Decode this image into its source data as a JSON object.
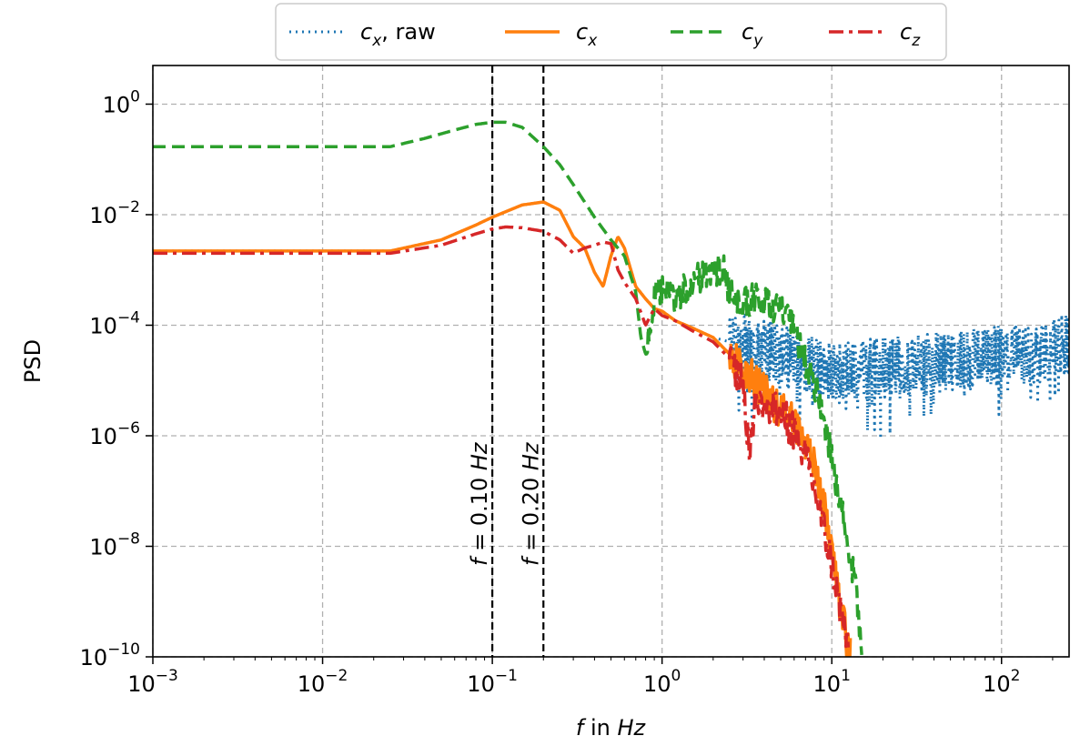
{
  "chart_data": {
    "type": "line",
    "xlabel": {
      "var": "f",
      "mid": " in ",
      "unit": "Hz"
    },
    "ylabel": "PSD",
    "xscale": "log",
    "yscale": "log",
    "xlim": [
      0.001,
      250
    ],
    "ylim": [
      1e-10,
      5
    ],
    "grid": true,
    "legend_placement": "top-center",
    "x_ticks": [
      {
        "value": 0.001,
        "base": "10",
        "exp": "−3"
      },
      {
        "value": 0.01,
        "base": "10",
        "exp": "−2"
      },
      {
        "value": 0.1,
        "base": "10",
        "exp": "−1"
      },
      {
        "value": 1,
        "base": "10",
        "exp": "0"
      },
      {
        "value": 10,
        "base": "10",
        "exp": "1"
      },
      {
        "value": 100,
        "base": "10",
        "exp": "2"
      }
    ],
    "y_ticks": [
      {
        "value": 1,
        "base": "10",
        "exp": "0"
      },
      {
        "value": 0.01,
        "base": "10",
        "exp": "−2"
      },
      {
        "value": 0.0001,
        "base": "10",
        "exp": "−4"
      },
      {
        "value": 1e-06,
        "base": "10",
        "exp": "−6"
      },
      {
        "value": 1e-08,
        "base": "10",
        "exp": "−8"
      },
      {
        "value": 1e-10,
        "base": "10",
        "exp": "−10"
      }
    ],
    "vlines": [
      {
        "x": 0.1,
        "label_var": "f",
        "label_rest": " = 0.10 ",
        "label_unit": "Hz"
      },
      {
        "x": 0.2,
        "label_var": "f",
        "label_rest": " = 0.20 ",
        "label_unit": "Hz"
      }
    ],
    "series": [
      {
        "key": "cx_raw",
        "legend_var": "c",
        "legend_sub": "x",
        "legend_suffix": ", raw",
        "color": "#1f77b4",
        "dash": "2,5",
        "width": 3,
        "x": [
          0.001,
          0.025,
          0.05,
          0.08,
          0.1,
          0.15,
          0.2,
          0.25,
          0.3,
          0.35,
          0.4,
          0.45,
          0.5,
          0.55,
          0.6,
          0.7,
          0.8,
          0.9,
          1.0,
          1.2,
          1.5,
          2.0,
          2.5,
          3.0,
          3.5,
          4.0,
          5.0,
          6.0,
          7.0,
          8.0,
          9.0,
          10,
          15,
          20,
          30,
          50,
          70,
          100,
          150,
          200,
          250
        ],
        "y": [
          0.0022,
          0.0022,
          0.0035,
          0.0065,
          0.009,
          0.015,
          0.017,
          0.012,
          0.004,
          0.0025,
          0.0009,
          0.0005,
          0.0018,
          0.004,
          0.0025,
          0.0005,
          0.0003,
          0.0002,
          0.00018,
          0.00012,
          9e-05,
          6e-05,
          5e-05,
          4.5e-05,
          4e-05,
          3.5e-05,
          3e-05,
          2.5e-05,
          2e-05,
          1.8e-05,
          1.5e-05,
          1.5e-05,
          1.6e-05,
          1.8e-05,
          2e-05,
          2.2e-05,
          2.5e-05,
          2.8e-05,
          3e-05,
          3.8e-05,
          5e-05
        ],
        "noise": {
          "x_from": 2.5,
          "amp": 0.55,
          "spikes": true
        }
      },
      {
        "key": "cx",
        "legend_var": "c",
        "legend_sub": "x",
        "legend_suffix": "",
        "color": "#ff7f0e",
        "dash": "",
        "width": 3.5,
        "x": [
          0.001,
          0.025,
          0.05,
          0.08,
          0.1,
          0.15,
          0.2,
          0.25,
          0.3,
          0.35,
          0.4,
          0.45,
          0.5,
          0.55,
          0.6,
          0.7,
          0.8,
          0.9,
          1.0,
          1.2,
          1.5,
          2.0,
          2.5,
          3.0,
          3.5,
          4.0,
          5.0,
          6.0,
          7.0,
          8.0,
          9.0,
          10,
          11,
          12,
          13
        ],
        "y": [
          0.0022,
          0.0022,
          0.0035,
          0.0065,
          0.009,
          0.015,
          0.017,
          0.012,
          0.004,
          0.0025,
          0.0009,
          0.0005,
          0.0018,
          0.004,
          0.0025,
          0.0005,
          0.0003,
          0.0002,
          0.00018,
          0.00012,
          9e-05,
          6e-05,
          3e-05,
          1.5e-05,
          1e-05,
          6e-06,
          3e-06,
          2e-06,
          8e-07,
          3e-07,
          5e-08,
          1e-08,
          1e-09,
          3e-10,
          1e-10
        ],
        "noise": {
          "x_from": 2.5,
          "amp": 0.35,
          "spikes": false
        }
      },
      {
        "key": "cy",
        "legend_var": "c",
        "legend_sub": "y",
        "legend_suffix": "",
        "color": "#2ca02c",
        "dash": "14,7",
        "width": 3.5,
        "x": [
          0.001,
          0.025,
          0.04,
          0.06,
          0.08,
          0.1,
          0.12,
          0.15,
          0.2,
          0.25,
          0.3,
          0.4,
          0.5,
          0.6,
          0.7,
          0.75,
          0.8,
          0.9,
          1.0,
          1.2,
          1.5,
          1.8,
          2.0,
          2.3,
          2.7,
          3.0,
          3.5,
          4.0,
          5.0,
          6.0,
          7.0,
          8.0,
          9.0,
          10,
          11,
          12,
          13,
          14,
          15
        ],
        "y": [
          0.17,
          0.17,
          0.24,
          0.34,
          0.43,
          0.47,
          0.47,
          0.38,
          0.17,
          0.08,
          0.035,
          0.009,
          0.0035,
          0.0018,
          0.0004,
          6e-05,
          3e-05,
          0.0003,
          0.0004,
          0.0003,
          0.0006,
          0.0008,
          0.001,
          0.001,
          0.0002,
          0.00025,
          0.0003,
          0.00025,
          0.0002,
          8e-05,
          2e-05,
          8e-06,
          2e-06,
          4e-07,
          8e-08,
          2e-08,
          5e-09,
          1.5e-09,
          1e-10
        ],
        "noise": {
          "x_from": 0.8,
          "amp": 0.3,
          "spikes": false
        }
      },
      {
        "key": "cz",
        "legend_var": "c",
        "legend_sub": "z",
        "legend_suffix": "",
        "color": "#d62728",
        "dash": "16,6,4,6",
        "width": 3.5,
        "x": [
          0.001,
          0.025,
          0.05,
          0.08,
          0.1,
          0.12,
          0.15,
          0.2,
          0.25,
          0.3,
          0.35,
          0.4,
          0.45,
          0.5,
          0.55,
          0.6,
          0.7,
          0.8,
          0.9,
          1.0,
          1.2,
          1.5,
          2.0,
          2.5,
          3.0,
          3.3,
          3.5,
          4.0,
          5.0,
          6.0,
          7.0,
          8.0,
          9.0,
          10,
          11,
          12,
          12.5
        ],
        "y": [
          0.002,
          0.002,
          0.0028,
          0.0045,
          0.0055,
          0.006,
          0.0058,
          0.005,
          0.0035,
          0.002,
          0.0025,
          0.0028,
          0.0032,
          0.003,
          0.001,
          0.0006,
          0.0003,
          0.0001,
          0.0002,
          0.00015,
          0.00012,
          8e-05,
          5e-05,
          2.5e-05,
          1e-05,
          4e-07,
          4e-06,
          4e-06,
          2.5e-06,
          1.2e-06,
          4e-07,
          1e-07,
          2e-08,
          5e-09,
          1e-09,
          3e-10,
          1e-10
        ],
        "noise": {
          "x_from": 2.5,
          "amp": 0.35,
          "spikes": false
        }
      }
    ]
  }
}
